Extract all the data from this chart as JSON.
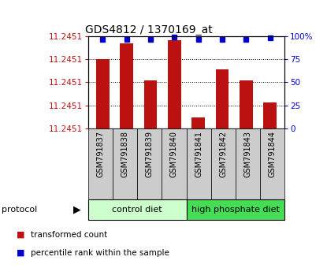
{
  "title": "GDS4812 / 1370169_at",
  "samples": [
    "GSM791837",
    "GSM791838",
    "GSM791839",
    "GSM791840",
    "GSM791841",
    "GSM791842",
    "GSM791843",
    "GSM791844"
  ],
  "red_bar_heights": [
    75,
    92,
    52,
    96,
    12,
    64,
    52,
    28
  ],
  "blue_dot_y": [
    97,
    97,
    97,
    99,
    97,
    97,
    97,
    98
  ],
  "yticks_left_labels": [
    "11.2451",
    "11.2451",
    "11.2451",
    "11.2451",
    "11.2451"
  ],
  "yticks_right": [
    0,
    25,
    50,
    75,
    100
  ],
  "yticks_right_labels": [
    "0",
    "25",
    "50",
    "75",
    "100%"
  ],
  "groups": [
    {
      "label": "control diet",
      "start": 0,
      "end": 4,
      "color": "#CCFFCC"
    },
    {
      "label": "high phosphate diet",
      "start": 4,
      "end": 8,
      "color": "#44DD55"
    }
  ],
  "protocol_label": "protocol",
  "legend1_label": "transformed count",
  "legend2_label": "percentile rank within the sample",
  "red_color": "#BB1111",
  "blue_color": "#0000CC",
  "sample_box_color": "#CCCCCC",
  "bar_width": 0.55,
  "background_color": "#FFFFFF",
  "title_fontsize": 10,
  "tick_fontsize": 7.5,
  "sample_name_fontsize": 7,
  "legend_fontsize": 7.5,
  "group_label_fontsize": 8,
  "protocol_fontsize": 8
}
